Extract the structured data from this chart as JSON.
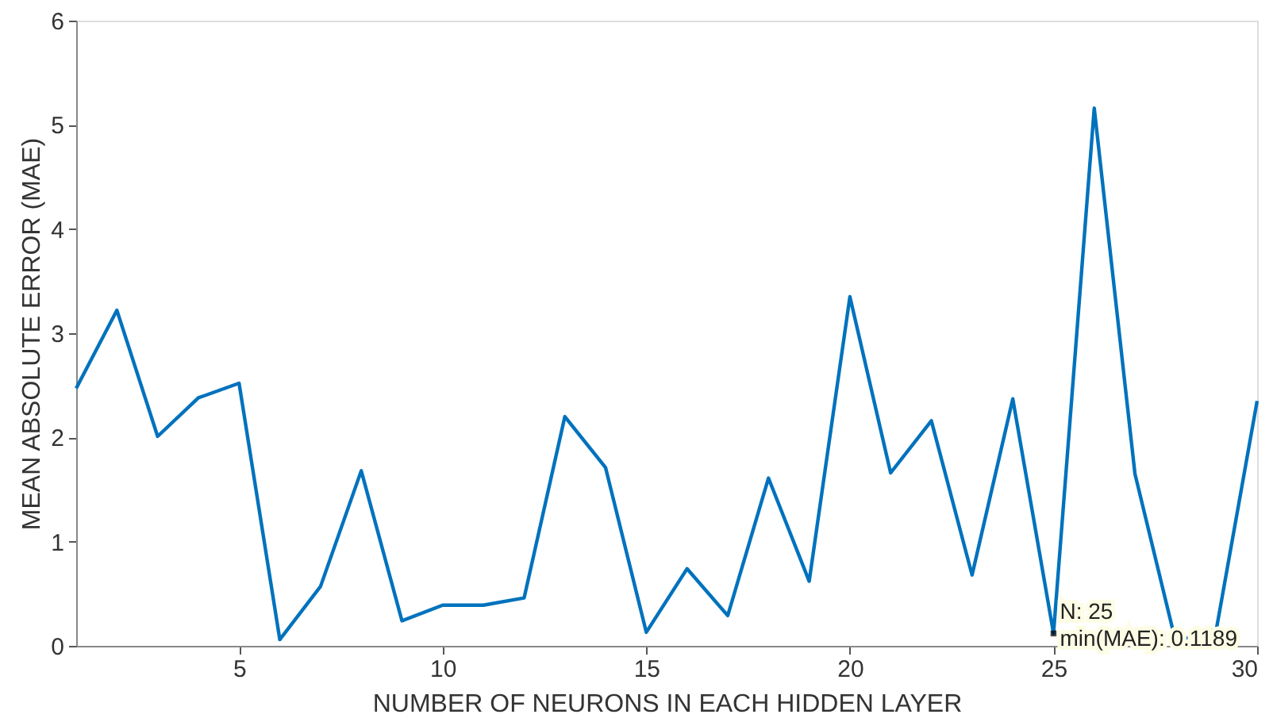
{
  "chart_data": {
    "type": "line",
    "xlabel": "NUMBER OF NEURONS IN EACH HIDDEN LAYER",
    "ylabel": "MEAN ABSOLUTE ERROR (MAE)",
    "x": [
      1,
      2,
      3,
      4,
      5,
      6,
      7,
      8,
      9,
      10,
      11,
      12,
      13,
      14,
      15,
      16,
      17,
      18,
      19,
      20,
      21,
      22,
      23,
      24,
      25,
      26,
      27,
      28,
      29,
      30
    ],
    "series": [
      {
        "color": "#0072bd",
        "values": [
          2.47,
          3.22,
          2.01,
          2.38,
          2.52,
          0.06,
          0.57,
          1.68,
          0.24,
          0.39,
          0.39,
          0.46,
          2.2,
          1.71,
          0.13,
          0.74,
          0.29,
          1.61,
          0.62,
          3.35,
          1.66,
          2.16,
          0.68,
          2.37,
          0.1189,
          5.16,
          1.65,
          0.04,
          0.16,
          2.35
        ]
      }
    ],
    "xlim": [
      1,
      30
    ],
    "xticks": [
      5,
      10,
      15,
      20,
      25,
      30
    ],
    "ylim": [
      0,
      6
    ],
    "yticks": [
      0,
      1,
      2,
      3,
      4,
      5,
      6
    ],
    "grid": false,
    "marker": "none",
    "line_style": "solid",
    "annotations": [
      {
        "text": "N: 25\nmin(MAE): 0.1189",
        "x": 25,
        "y": 0.1189
      }
    ]
  }
}
